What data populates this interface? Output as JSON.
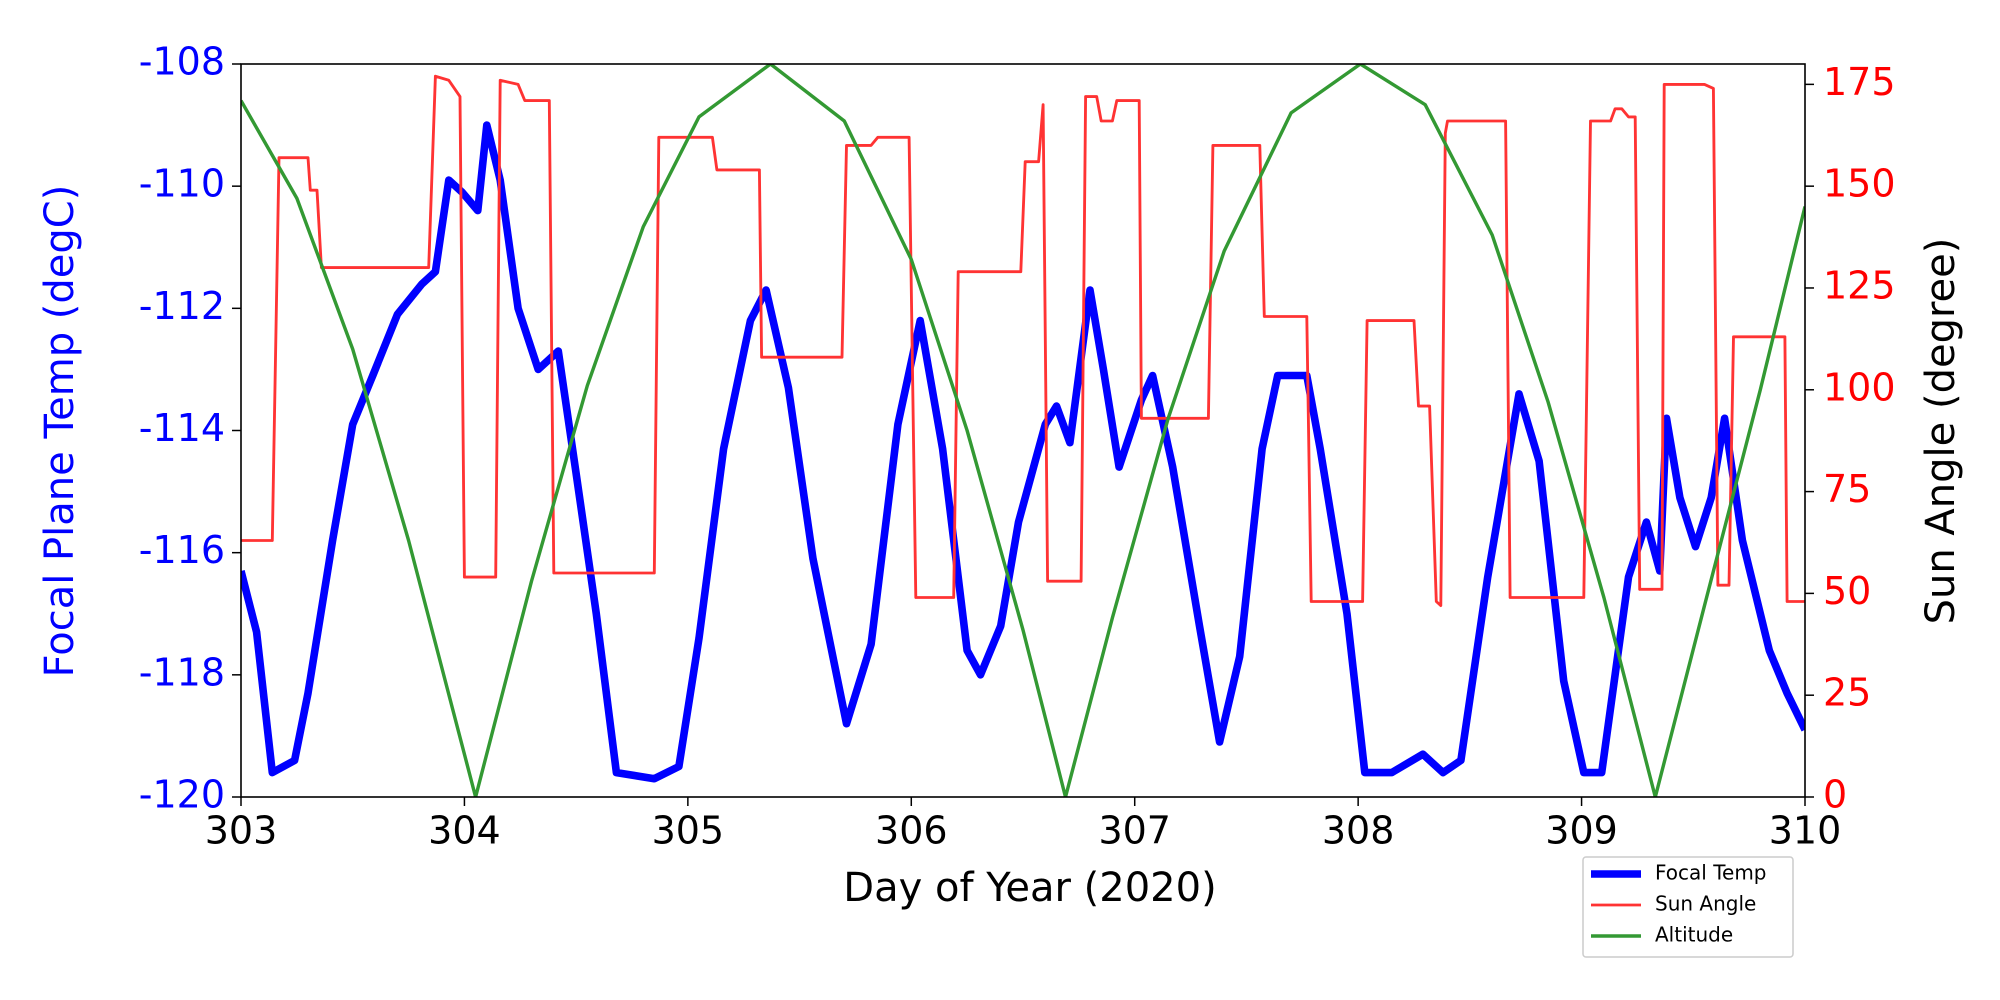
{
  "chart_data": {
    "type": "line",
    "xlabel": "Day of Year (2020)",
    "ylabel": "Focal Plane Temp (degC)",
    "y2label": "Sun Angle (degree)",
    "xlim": [
      303,
      310
    ],
    "xticks": [
      303,
      304,
      305,
      306,
      307,
      308,
      309,
      310
    ],
    "ylim": [
      -120,
      -108
    ],
    "yticks": [
      -120,
      -118,
      -116,
      -114,
      -112,
      -110,
      -108
    ],
    "y2lim": [
      0,
      180
    ],
    "y2ticks": [
      0,
      25,
      50,
      75,
      100,
      125,
      150,
      175
    ],
    "ylabel_color": "#0000ff",
    "y2label_color": "#ff0000",
    "legend": "lower right",
    "series": [
      {
        "name": "Focal Temp",
        "color": "#0000ff",
        "axis": "y",
        "width": 4,
        "x": [
          303.0,
          303.07,
          303.14,
          303.24,
          303.3,
          303.41,
          303.5,
          303.59,
          303.7,
          303.81,
          303.87,
          303.93,
          303.99,
          304.06,
          304.1,
          304.16,
          304.24,
          304.33,
          304.42,
          304.5,
          304.59,
          304.68,
          304.85,
          304.96,
          305.05,
          305.16,
          305.28,
          305.35,
          305.45,
          305.56,
          305.71,
          305.82,
          305.94,
          306.04,
          306.14,
          306.25,
          306.31,
          306.4,
          306.48,
          306.6,
          306.65,
          306.71,
          306.8,
          306.86,
          306.93,
          307.03,
          307.08,
          307.17,
          307.29,
          307.38,
          307.47,
          307.57,
          307.64,
          307.77,
          307.83,
          307.95,
          308.03,
          308.15,
          308.29,
          308.38,
          308.46,
          308.58,
          308.72,
          308.81,
          308.92,
          309.01,
          309.09,
          309.21,
          309.29,
          309.35,
          309.38,
          309.44,
          309.51,
          309.58,
          309.64,
          309.72,
          309.84,
          309.92,
          310.0
        ],
        "values": [
          -116.3,
          -117.3,
          -119.6,
          -119.4,
          -118.3,
          -115.8,
          -113.9,
          -113.1,
          -112.1,
          -111.6,
          -111.4,
          -109.9,
          -110.1,
          -110.4,
          -109.0,
          -109.9,
          -112.0,
          -113.0,
          -112.7,
          -114.7,
          -117.0,
          -119.6,
          -119.7,
          -119.5,
          -117.4,
          -114.3,
          -112.2,
          -111.7,
          -113.3,
          -116.1,
          -118.8,
          -117.5,
          -113.9,
          -112.2,
          -114.3,
          -117.6,
          -118.0,
          -117.2,
          -115.5,
          -113.9,
          -113.6,
          -114.2,
          -111.7,
          -113.0,
          -114.6,
          -113.5,
          -113.1,
          -114.6,
          -117.2,
          -119.1,
          -117.7,
          -114.3,
          -113.1,
          -113.1,
          -114.3,
          -117.0,
          -119.6,
          -119.6,
          -119.3,
          -119.6,
          -119.4,
          -116.4,
          -113.4,
          -114.5,
          -118.1,
          -119.6,
          -119.6,
          -116.4,
          -115.5,
          -116.3,
          -113.8,
          -115.1,
          -115.9,
          -115.1,
          -113.8,
          -115.8,
          -117.6,
          -118.3,
          -118.9
        ]
      },
      {
        "name": "Sun Angle",
        "color": "#ff3333",
        "axis": "y2",
        "width": 1.5,
        "x": [
          303.0,
          303.14,
          303.17,
          303.3,
          303.31,
          303.34,
          303.36,
          303.84,
          303.87,
          303.93,
          303.98,
          304.0,
          304.14,
          304.16,
          304.24,
          304.27,
          304.38,
          304.4,
          304.85,
          304.87,
          305.11,
          305.13,
          305.32,
          305.33,
          305.69,
          305.71,
          305.82,
          305.85,
          305.99,
          306.02,
          306.19,
          306.21,
          306.49,
          306.51,
          306.57,
          306.59,
          306.61,
          306.76,
          306.78,
          306.83,
          306.85,
          306.9,
          306.92,
          307.02,
          307.03,
          307.33,
          307.35,
          307.56,
          307.58,
          307.77,
          307.79,
          308.02,
          308.04,
          308.25,
          308.27,
          308.32,
          308.35,
          308.37,
          308.39,
          308.4,
          308.66,
          308.68,
          309.01,
          309.04,
          309.13,
          309.15,
          309.18,
          309.21,
          309.24,
          309.26,
          309.36,
          309.37,
          309.55,
          309.59,
          309.61,
          309.66,
          309.68,
          309.91,
          309.92,
          310.0
        ],
        "values": [
          63,
          63,
          157,
          157,
          149,
          149,
          130,
          130,
          177,
          176,
          172,
          54,
          54,
          176,
          175,
          171,
          171,
          55,
          55,
          162,
          162,
          154,
          154,
          108,
          108,
          160,
          160,
          162,
          162,
          49,
          49,
          129,
          129,
          156,
          156,
          170,
          53,
          53,
          172,
          172,
          166,
          166,
          171,
          171,
          93,
          93,
          160,
          160,
          118,
          118,
          48,
          48,
          117,
          117,
          96,
          96,
          48,
          47,
          163,
          166,
          166,
          49,
          49,
          166,
          166,
          169,
          169,
          167,
          167,
          51,
          51,
          175,
          175,
          174,
          52,
          52,
          113,
          113,
          48,
          48
        ]
      },
      {
        "name": "Altitude",
        "color": "#339933",
        "axis": "y2",
        "width": 1.8,
        "x": [
          303,
          303.25,
          303.5,
          303.75,
          304.05,
          304.3,
          304.55,
          304.8,
          305.05,
          305.37,
          305.7,
          306.0,
          306.25,
          306.5,
          306.69,
          306.9,
          307.15,
          307.4,
          307.7,
          308.01,
          308.3,
          308.6,
          308.85,
          309.1,
          309.33,
          309.55,
          309.8,
          310
        ],
        "values": [
          171,
          147,
          110,
          63,
          0,
          53,
          101,
          140,
          167,
          180,
          166,
          132,
          90,
          41,
          0,
          44,
          93,
          134,
          168,
          180,
          170,
          138,
          97,
          49,
          0,
          47,
          100,
          145
        ]
      }
    ]
  }
}
